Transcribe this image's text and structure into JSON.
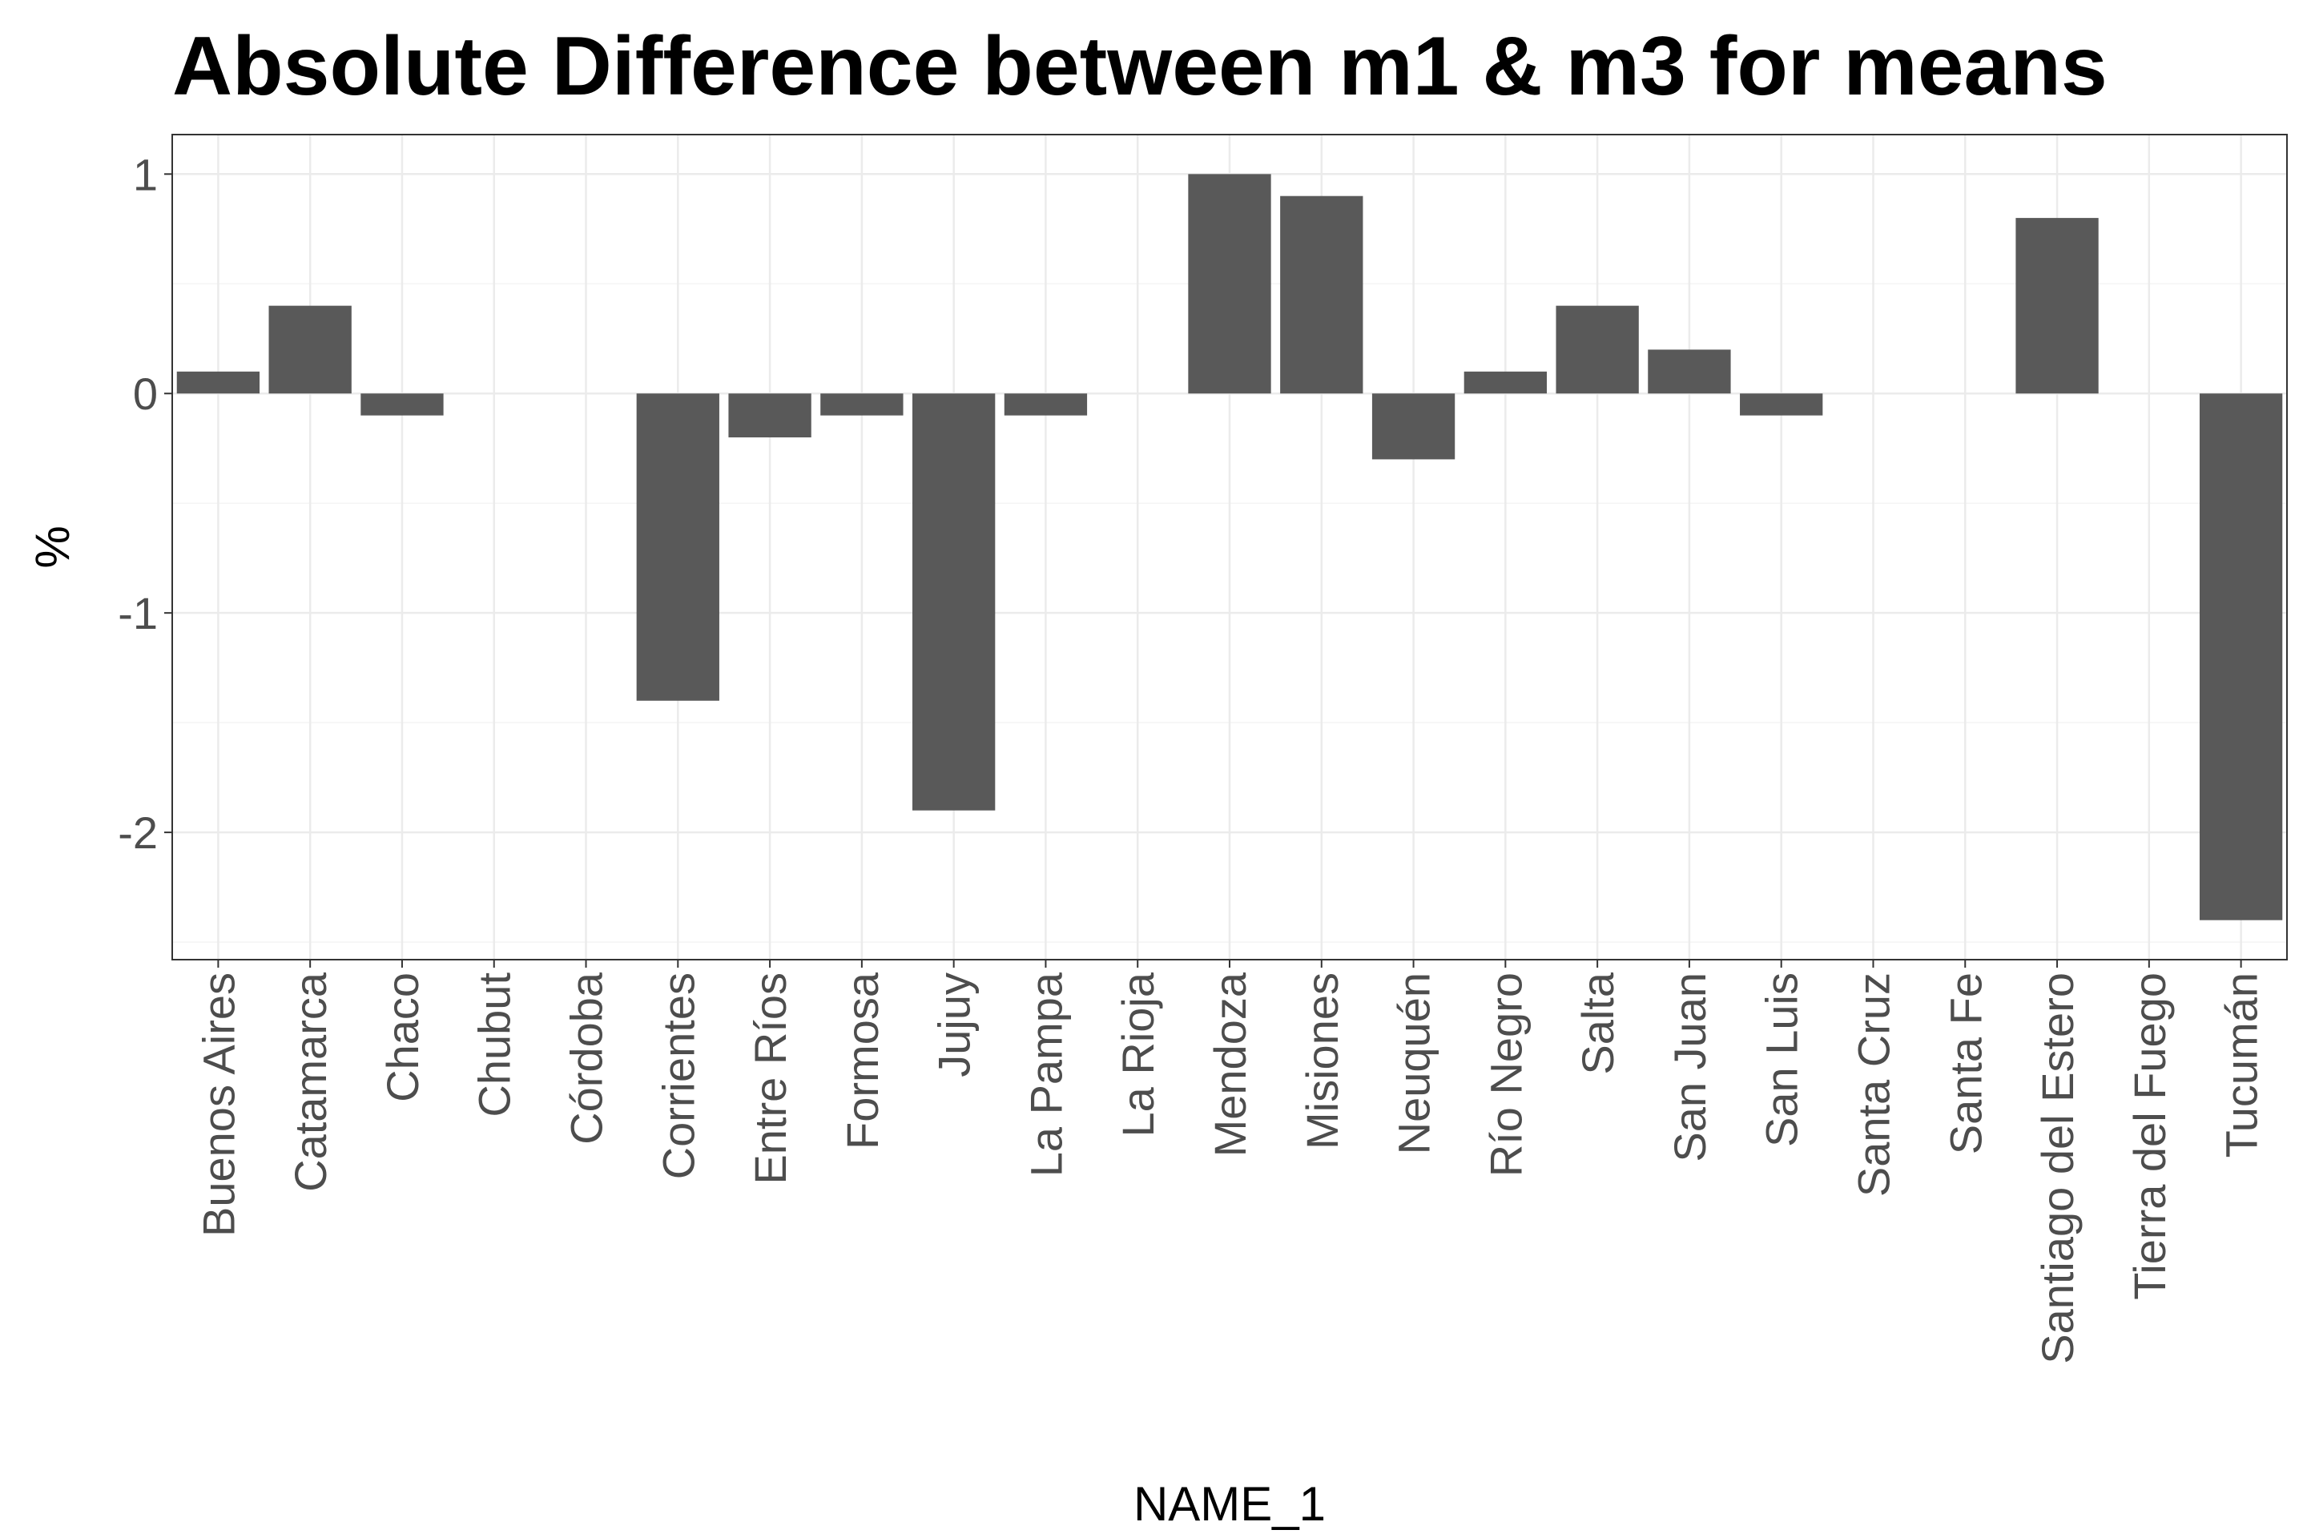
{
  "chart_data": {
    "type": "bar",
    "title": "Absolute Difference between m1 & m3 for means",
    "xlabel": "NAME_1",
    "ylabel": "%",
    "categories": [
      "Buenos Aires",
      "Catamarca",
      "Chaco",
      "Chubut",
      "Córdoba",
      "Corrientes",
      "Entre Ríos",
      "Formosa",
      "Jujuy",
      "La Pampa",
      "La Rioja",
      "Mendoza",
      "Misiones",
      "Neuquén",
      "Río Negro",
      "Salta",
      "San Juan",
      "San Luis",
      "Santa Cruz",
      "Santa Fe",
      "Santiago del Estero",
      "Tierra del Fuego",
      "Tucumán"
    ],
    "values": [
      0.1,
      0.4,
      -0.1,
      0,
      0,
      -1.4,
      -0.2,
      -0.1,
      -1.9,
      -0.1,
      0,
      1.0,
      0.9,
      -0.3,
      0.1,
      0.4,
      0.2,
      -0.1,
      0,
      0,
      0.8,
      0,
      -2.4
    ],
    "ylim": [
      -2.58,
      1.18
    ],
    "yticks": [
      1,
      0,
      -1,
      -2
    ],
    "ytick_labels": [
      "1",
      "0",
      "-1",
      "-2"
    ],
    "grid": true,
    "bar_color": "#595959"
  }
}
